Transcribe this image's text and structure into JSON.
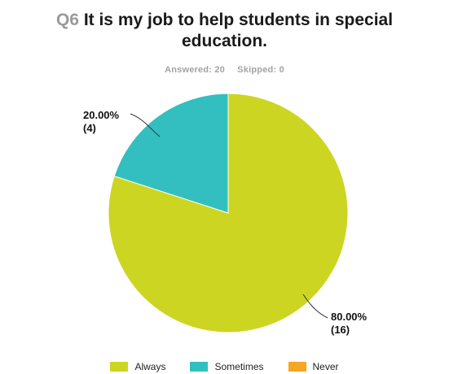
{
  "question": {
    "number": "Q6",
    "text": "It is my job to help students in special",
    "text_line2": "education."
  },
  "stats": {
    "answered": "Answered: 20",
    "skipped": "Skipped: 0"
  },
  "colors": {
    "always": "#cdd523",
    "sometimes": "#33bfbf",
    "never": "#f5a623"
  },
  "chart_data": {
    "type": "pie",
    "categories": [
      "Always",
      "Sometimes",
      "Never"
    ],
    "values": [
      80,
      20,
      0
    ],
    "counts": [
      16,
      4,
      0
    ],
    "labels": [
      {
        "pct": "80.00%",
        "count": "(16)"
      },
      {
        "pct": "20.00%",
        "count": "(4)"
      }
    ],
    "legend": [
      "Always",
      "Sometimes",
      "Never"
    ],
    "legend_position": "bottom"
  }
}
